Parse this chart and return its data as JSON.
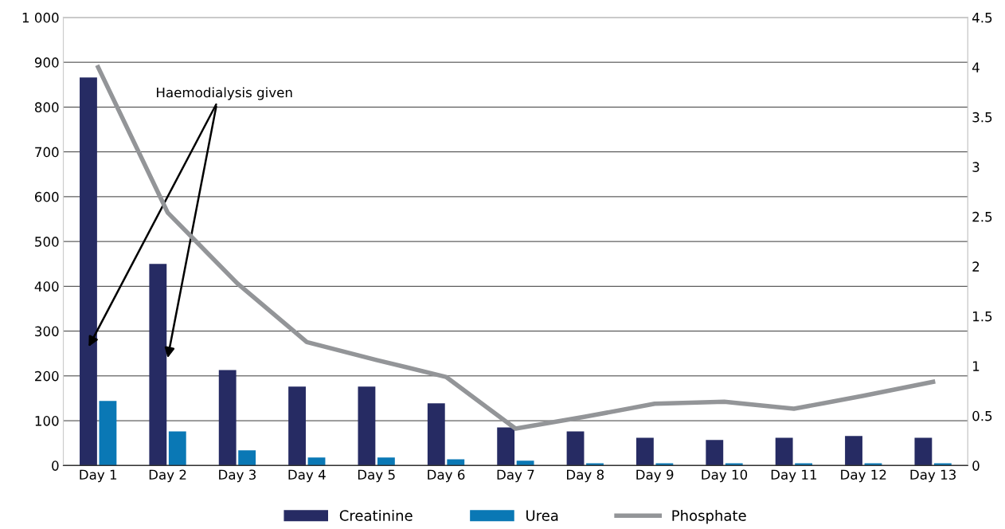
{
  "chart_data": {
    "type": "bar",
    "categories": [
      "Day 1",
      "Day 2",
      "Day 3",
      "Day 4",
      "Day 5",
      "Day 6",
      "Day 7",
      "Day 8",
      "Day 9",
      "Day 10",
      "Day 11",
      "Day 12",
      "Day 13"
    ],
    "series": [
      {
        "name": "Creatinine",
        "color": "#262b63",
        "values": [
          866,
          450,
          213,
          176,
          176,
          139,
          85,
          76,
          62,
          57,
          62,
          66,
          62
        ]
      },
      {
        "name": "Urea",
        "color": "#0a78b5",
        "values": [
          144,
          76,
          34,
          18,
          18,
          14,
          11,
          5,
          5,
          5,
          5,
          5,
          5
        ]
      },
      {
        "name": "Phosphate",
        "type": "line",
        "axis": "y2",
        "color": "#939598",
        "values": [
          4.0,
          2.54,
          1.83,
          1.24,
          1.06,
          0.89,
          0.37,
          0.49,
          0.62,
          0.64,
          0.57,
          0.7,
          0.84
        ]
      }
    ],
    "ylim": [
      0,
      1000
    ],
    "yticks": [
      0,
      100,
      200,
      300,
      400,
      500,
      600,
      700,
      800,
      900,
      {
        "value": 1000,
        "label": "1 000"
      }
    ],
    "y2lim": [
      0,
      4.5
    ],
    "y2ticks": [
      0,
      0.5,
      1,
      1.5,
      2,
      2.5,
      3,
      3.5,
      4,
      4.5
    ],
    "grid": "y",
    "legend": "bottom",
    "annotations": [
      {
        "text": "Haemodialysis given",
        "x": "Day 2",
        "y": 240
      }
    ]
  }
}
